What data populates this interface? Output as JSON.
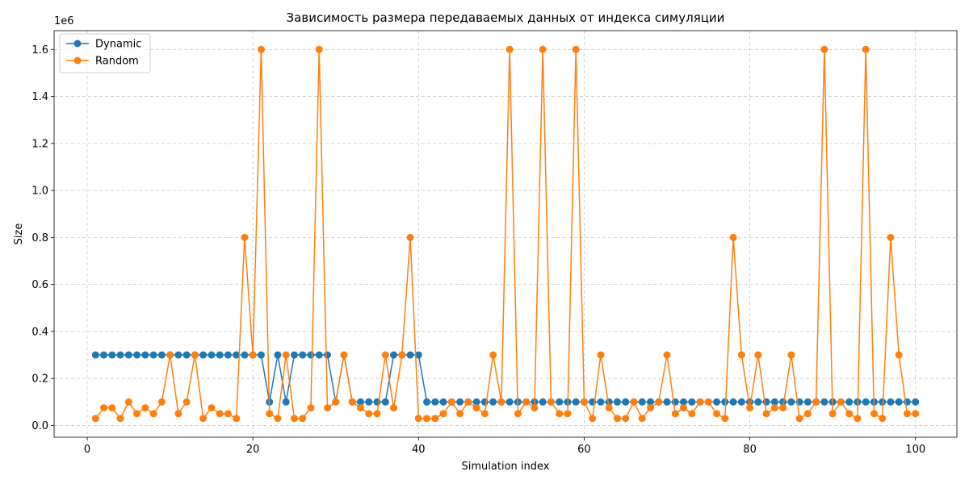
{
  "chart_data": {
    "type": "line",
    "title": "Зависимость размера передаваемых данных от индекса симуляции",
    "xlabel": "Simulation index",
    "ylabel": "Size",
    "y_offset_label": "1e6",
    "xlim": [
      -4,
      105
    ],
    "ylim": [
      -50000,
      1680000
    ],
    "x_ticks": [
      0,
      20,
      40,
      60,
      80,
      100
    ],
    "x_tick_labels": [
      "0",
      "20",
      "40",
      "60",
      "80",
      "100"
    ],
    "y_ticks": [
      0,
      200000,
      400000,
      600000,
      800000,
      1000000,
      1200000,
      1400000,
      1600000
    ],
    "y_tick_labels": [
      "0.0",
      "0.2",
      "0.4",
      "0.6",
      "0.8",
      "1.0",
      "1.2",
      "1.4",
      "1.6"
    ],
    "grid": true,
    "legend_position": "top-left",
    "x": [
      1,
      2,
      3,
      4,
      5,
      6,
      7,
      8,
      9,
      10,
      11,
      12,
      13,
      14,
      15,
      16,
      17,
      18,
      19,
      20,
      21,
      22,
      23,
      24,
      25,
      26,
      27,
      28,
      29,
      30,
      31,
      32,
      33,
      34,
      35,
      36,
      37,
      38,
      39,
      40,
      41,
      42,
      43,
      44,
      45,
      46,
      47,
      48,
      49,
      50,
      51,
      52,
      53,
      54,
      55,
      56,
      57,
      58,
      59,
      60,
      61,
      62,
      63,
      64,
      65,
      66,
      67,
      68,
      69,
      70,
      71,
      72,
      73,
      74,
      75,
      76,
      77,
      78,
      79,
      80,
      81,
      82,
      83,
      84,
      85,
      86,
      87,
      88,
      89,
      90,
      91,
      92,
      93,
      94,
      95,
      96,
      97,
      98,
      99,
      100
    ],
    "series": [
      {
        "name": "Dynamic",
        "color": "#1f77b4",
        "values": [
          300000,
          300000,
          300000,
          300000,
          300000,
          300000,
          300000,
          300000,
          300000,
          300000,
          300000,
          300000,
          300000,
          300000,
          300000,
          300000,
          300000,
          300000,
          300000,
          300000,
          300000,
          100000,
          300000,
          100000,
          300000,
          300000,
          300000,
          300000,
          300000,
          100000,
          300000,
          100000,
          100000,
          100000,
          100000,
          100000,
          300000,
          300000,
          300000,
          300000,
          100000,
          100000,
          100000,
          100000,
          100000,
          100000,
          100000,
          100000,
          100000,
          100000,
          100000,
          100000,
          100000,
          100000,
          100000,
          100000,
          100000,
          100000,
          100000,
          100000,
          100000,
          100000,
          100000,
          100000,
          100000,
          100000,
          100000,
          100000,
          100000,
          100000,
          100000,
          100000,
          100000,
          100000,
          100000,
          100000,
          100000,
          100000,
          100000,
          100000,
          100000,
          100000,
          100000,
          100000,
          100000,
          100000,
          100000,
          100000,
          100000,
          100000,
          100000,
          100000,
          100000,
          100000,
          100000,
          100000,
          100000,
          100000,
          100000,
          100000
        ]
      },
      {
        "name": "Random",
        "color": "#ff7f0e",
        "values": [
          30000,
          75000,
          75000,
          30000,
          100000,
          50000,
          75000,
          50000,
          100000,
          300000,
          50000,
          100000,
          300000,
          30000,
          75000,
          50000,
          50000,
          30000,
          800000,
          300000,
          1600000,
          50000,
          30000,
          300000,
          30000,
          30000,
          75000,
          1600000,
          75000,
          100000,
          300000,
          100000,
          75000,
          50000,
          50000,
          300000,
          75000,
          300000,
          800000,
          30000,
          30000,
          30000,
          50000,
          100000,
          50000,
          100000,
          75000,
          50000,
          300000,
          100000,
          1600000,
          50000,
          100000,
          75000,
          1600000,
          100000,
          50000,
          50000,
          1600000,
          100000,
          30000,
          300000,
          75000,
          30000,
          30000,
          100000,
          30000,
          75000,
          100000,
          300000,
          50000,
          75000,
          50000,
          100000,
          100000,
          50000,
          30000,
          800000,
          300000,
          75000,
          300000,
          50000,
          75000,
          75000,
          300000,
          30000,
          50000,
          100000,
          1600000,
          50000,
          100000,
          50000,
          30000,
          1600000,
          50000,
          30000,
          800000,
          300000,
          50000,
          50000
        ]
      }
    ]
  }
}
